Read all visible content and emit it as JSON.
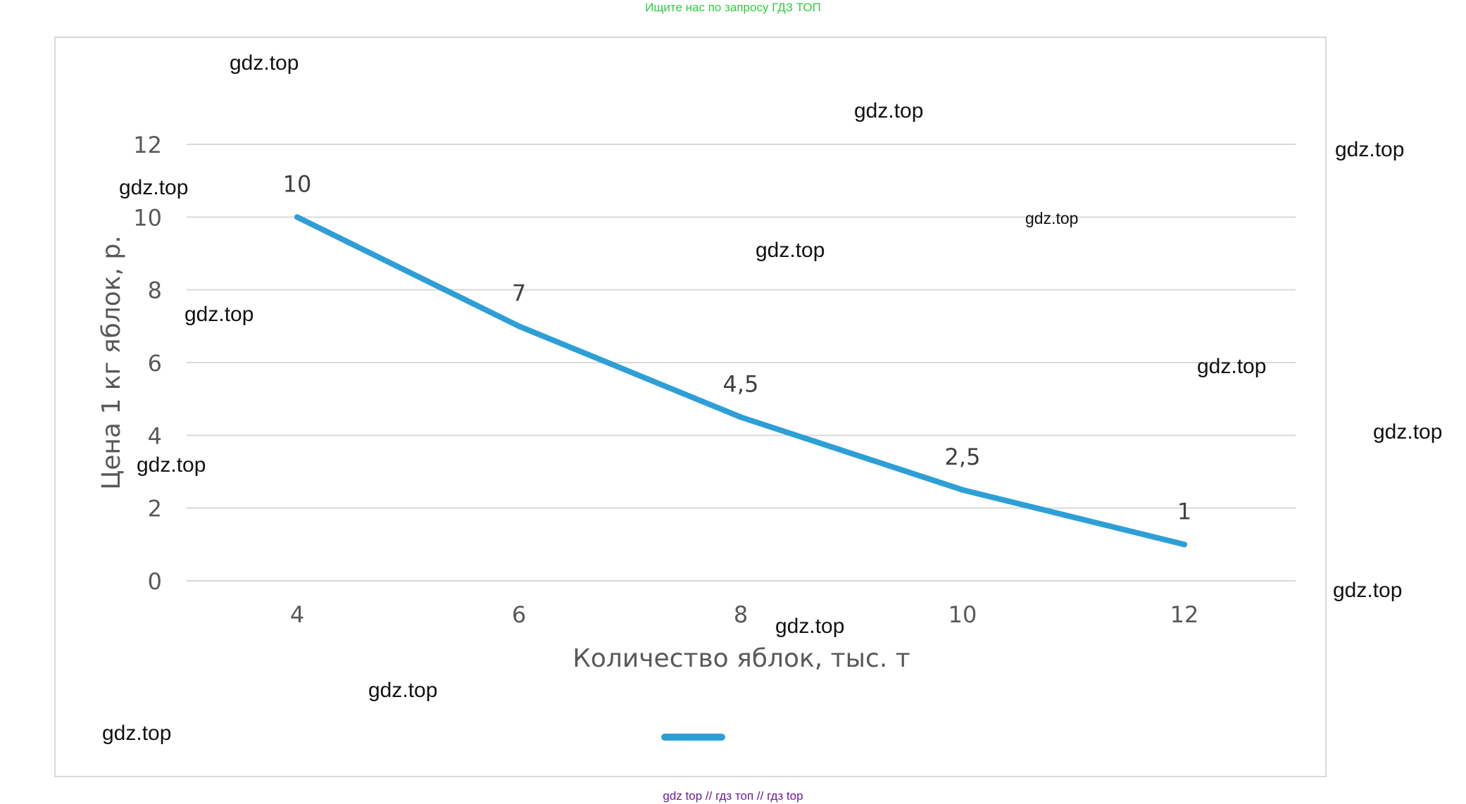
{
  "banners": {
    "top": "Ищите нас по запросу ГДЗ ТОП",
    "bottom": "gdz top  //  гдз топ  //  гдз top"
  },
  "colors": {
    "series": "#2e9fd6",
    "grid": "#d9d9d9",
    "axis_text": "#595959",
    "top_banner": "#2ecc40",
    "bottom_banner": "#6a1b9a"
  },
  "watermarks": [
    {
      "text": "gdz.top"
    },
    {
      "text": "gdz.top"
    },
    {
      "text": "gdz.top"
    },
    {
      "text": "gdz.top"
    },
    {
      "text": "gdz.top"
    },
    {
      "text": "gdz.top"
    },
    {
      "text": "gdz.top"
    },
    {
      "text": "gdz.top"
    },
    {
      "text": "gdz.top"
    },
    {
      "text": "gdz.top"
    },
    {
      "text": "gdz.top"
    },
    {
      "text": "gdz.top"
    },
    {
      "text": "gdz.top"
    },
    {
      "text": "gdz.top"
    }
  ],
  "chart_data": {
    "type": "line",
    "title": "",
    "xlabel": "Количество яблок, тыс. т",
    "ylabel": "Цена 1 кг яблок, р.",
    "x": [
      4,
      6,
      8,
      10,
      12
    ],
    "x_tick_labels": [
      "4",
      "6",
      "8",
      "10",
      "12"
    ],
    "y_ticks": [
      0,
      2,
      4,
      6,
      8,
      10,
      12
    ],
    "y_tick_labels": [
      "0",
      "2",
      "4",
      "6",
      "8",
      "10",
      "12"
    ],
    "ylim": [
      0,
      12
    ],
    "series": [
      {
        "values": [
          10,
          7,
          4.5,
          2.5,
          1
        ],
        "data_labels": [
          "10",
          "7",
          "4,5",
          "2,5",
          "1"
        ]
      }
    ],
    "grid": true,
    "legend_position": "bottom"
  }
}
